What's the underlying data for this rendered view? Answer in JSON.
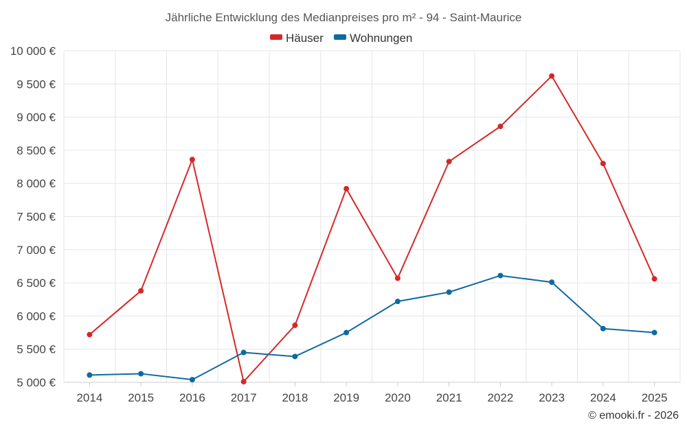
{
  "chart_data": {
    "type": "line",
    "title": "Jährliche Entwicklung des Medianpreises pro m² - 94 - Saint-Maurice",
    "categories": [
      "2014",
      "2015",
      "2016",
      "2017",
      "2018",
      "2019",
      "2020",
      "2021",
      "2022",
      "2023",
      "2024",
      "2025"
    ],
    "series": [
      {
        "name": "Häuser",
        "color": "#d62728",
        "values": [
          5720,
          6380,
          8360,
          5010,
          5860,
          7920,
          6570,
          8330,
          8860,
          9620,
          8300,
          6560
        ]
      },
      {
        "name": "Wohnungen",
        "color": "#0f6aa0",
        "values": [
          5110,
          5130,
          5040,
          5450,
          5390,
          5750,
          6220,
          6360,
          6610,
          6510,
          5810,
          5750
        ]
      }
    ],
    "ylim": [
      5000,
      10000
    ],
    "yticks": [
      5000,
      5500,
      6000,
      6500,
      7000,
      7500,
      8000,
      8500,
      9000,
      9500,
      10000
    ],
    "ytick_labels": [
      "5 000 €",
      "5 500 €",
      "6 000 €",
      "6 500 €",
      "7 000 €",
      "7 500 €",
      "8 000 €",
      "8 500 €",
      "9 000 €",
      "9 500 €",
      "10 000 €"
    ],
    "xlabel": "",
    "ylabel": "",
    "grid": true,
    "legend_position": "top-center",
    "credit": "© emooki.fr - 2026"
  }
}
